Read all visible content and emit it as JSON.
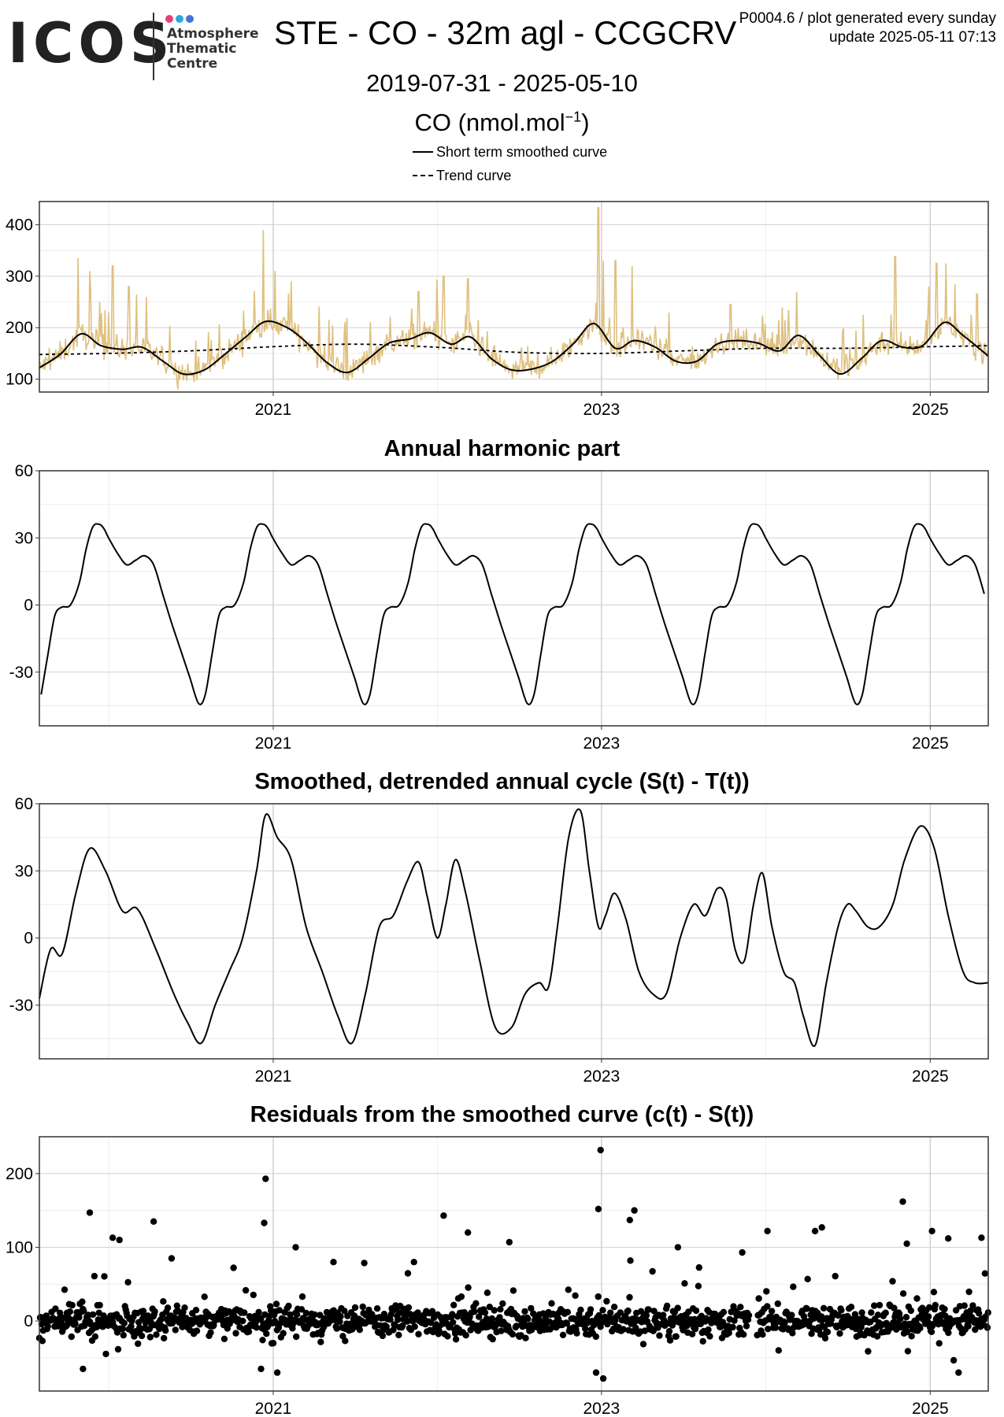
{
  "logo": {
    "word": "ICOS",
    "line1": "Atmosphere",
    "line2": "Thematic",
    "line3": "Centre",
    "dot_colors": [
      "#e8417a",
      "#29a9e0",
      "#4a6fd8"
    ]
  },
  "header": {
    "title": "STE - CO - 32m agl - CCGCRV",
    "meta_line1": "P0004.6 / plot generated every sunday",
    "meta_line2": "update  2025-05-11 07:13",
    "date_range": "2019-07-31 - 2025-05-10",
    "unit_base": "CO (nmol.mol",
    "unit_exp": "−1",
    "unit_close": ")"
  },
  "legend": {
    "solid_label": "Short term smoothed curve",
    "dashed_label": "Trend curve"
  },
  "colors": {
    "raw_series": "#dfc07e",
    "curves": "#000000",
    "grid_major": "#d0d0d0",
    "grid_minor": "#ececec",
    "frame": "#333333"
  },
  "chart_data": [
    {
      "type": "line",
      "title": "",
      "x_tick_labels": [
        "2021",
        "2023",
        "2025"
      ],
      "x_ticks": [
        "2021-01-01",
        "2023-01-01",
        "2025-01-01"
      ],
      "xlim": [
        "2019-07-31",
        "2025-05-10"
      ],
      "ylim": [
        75,
        445
      ],
      "y_ticks": [
        100,
        200,
        300,
        400
      ],
      "grid": true,
      "series": [
        {
          "name": "Short term smoothed curve",
          "style": "solid",
          "x": [
            "2019-07-31",
            "2019-09-15",
            "2019-11-01",
            "2019-12-15",
            "2020-02-01",
            "2020-03-15",
            "2020-05-01",
            "2020-06-15",
            "2020-08-01",
            "2020-09-15",
            "2020-11-01",
            "2020-12-15",
            "2021-02-01",
            "2021-03-15",
            "2021-05-01",
            "2021-06-15",
            "2021-08-01",
            "2021-09-15",
            "2021-11-01",
            "2021-12-15",
            "2022-02-01",
            "2022-03-15",
            "2022-05-01",
            "2022-06-15",
            "2022-08-01",
            "2022-09-15",
            "2022-11-01",
            "2022-12-15",
            "2023-02-01",
            "2023-03-15",
            "2023-05-01",
            "2023-06-15",
            "2023-08-01",
            "2023-09-15",
            "2023-11-01",
            "2023-12-15",
            "2024-02-01",
            "2024-03-15",
            "2024-05-01",
            "2024-06-15",
            "2024-08-01",
            "2024-09-15",
            "2024-11-01",
            "2024-12-15",
            "2025-02-01",
            "2025-03-15",
            "2025-05-10"
          ],
          "values": [
            122,
            148,
            188,
            165,
            158,
            162,
            135,
            110,
            118,
            148,
            182,
            212,
            200,
            172,
            132,
            113,
            140,
            170,
            178,
            190,
            168,
            182,
            140,
            118,
            120,
            135,
            170,
            208,
            160,
            175,
            162,
            135,
            135,
            168,
            175,
            170,
            155,
            185,
            145,
            110,
            140,
            175,
            162,
            165,
            210,
            185,
            145
          ]
        },
        {
          "name": "Trend curve",
          "style": "dashed",
          "x": [
            "2019-07-31",
            "2020-01-01",
            "2020-07-01",
            "2021-01-01",
            "2021-07-01",
            "2022-01-01",
            "2022-07-01",
            "2023-01-01",
            "2023-07-01",
            "2024-01-01",
            "2024-07-01",
            "2025-01-01",
            "2025-05-10"
          ],
          "values": [
            148,
            150,
            155,
            163,
            168,
            162,
            152,
            150,
            155,
            160,
            160,
            163,
            165
          ]
        },
        {
          "name": "Raw observations",
          "style": "noisy",
          "color": "#dfc07e",
          "spikes": [
            {
              "x": "2019-10-25",
              "y": 335
            },
            {
              "x": "2019-11-20",
              "y": 310
            },
            {
              "x": "2020-01-10",
              "y": 320
            },
            {
              "x": "2020-02-15",
              "y": 280
            },
            {
              "x": "2020-03-25",
              "y": 260
            },
            {
              "x": "2020-12-10",
              "y": 390
            },
            {
              "x": "2021-01-05",
              "y": 310
            },
            {
              "x": "2021-02-10",
              "y": 290
            },
            {
              "x": "2021-11-20",
              "y": 270
            },
            {
              "x": "2022-01-15",
              "y": 300
            },
            {
              "x": "2022-03-10",
              "y": 295
            },
            {
              "x": "2022-12-25",
              "y": 433
            },
            {
              "x": "2023-01-05",
              "y": 330
            },
            {
              "x": "2023-02-01",
              "y": 330
            },
            {
              "x": "2023-03-10",
              "y": 320
            },
            {
              "x": "2023-10-15",
              "y": 245
            },
            {
              "x": "2024-03-10",
              "y": 270
            },
            {
              "x": "2024-10-15",
              "y": 338
            },
            {
              "x": "2025-01-15",
              "y": 325
            },
            {
              "x": "2025-02-05",
              "y": 325
            },
            {
              "x": "2025-04-15",
              "y": 265
            }
          ]
        }
      ]
    },
    {
      "type": "line",
      "title": "Annual harmonic part",
      "x_tick_labels": [
        "2021",
        "2023",
        "2025"
      ],
      "x_ticks": [
        "2021-01-01",
        "2023-01-01",
        "2025-01-01"
      ],
      "xlim": [
        "2019-07-31",
        "2025-05-10"
      ],
      "ylim": [
        -54,
        60
      ],
      "y_ticks": [
        60,
        30,
        0,
        -30
      ],
      "y_tick_labels": [
        "60",
        "30",
        "0",
        "-30"
      ],
      "grid": true,
      "annual_cycle": {
        "day_of_year": [
          0,
          20,
          40,
          60,
          80,
          100,
          120,
          140,
          160,
          180,
          200,
          215,
          230,
          245,
          260,
          280,
          300,
          315,
          330,
          345,
          355,
          365
        ],
        "values": [
          30,
          23,
          18,
          20,
          22,
          18,
          5,
          -8,
          -20,
          -32,
          -44,
          -40,
          -22,
          -5,
          -1,
          0,
          10,
          25,
          35,
          36,
          34,
          30
        ]
      }
    },
    {
      "type": "line",
      "title": "Smoothed, detrended annual cycle (S(t) - T(t))",
      "x_tick_labels": [
        "2021",
        "2023",
        "2025"
      ],
      "x_ticks": [
        "2021-01-01",
        "2023-01-01",
        "2025-01-01"
      ],
      "xlim": [
        "2019-07-31",
        "2025-05-10"
      ],
      "ylim": [
        -54,
        60
      ],
      "y_ticks": [
        60,
        30,
        0,
        -30
      ],
      "y_tick_labels": [
        "60",
        "30",
        "0",
        "-30"
      ],
      "grid": true,
      "series": [
        {
          "name": "",
          "x": [
            "2019-07-31",
            "2019-08-25",
            "2019-09-20",
            "2019-10-20",
            "2019-11-20",
            "2019-12-25",
            "2020-02-01",
            "2020-03-05",
            "2020-04-15",
            "2020-05-25",
            "2020-06-25",
            "2020-07-25",
            "2020-08-25",
            "2020-09-25",
            "2020-10-25",
            "2020-11-25",
            "2020-12-15",
            "2021-01-10",
            "2021-02-10",
            "2021-03-15",
            "2021-04-20",
            "2021-05-25",
            "2021-06-25",
            "2021-07-25",
            "2021-08-25",
            "2021-09-25",
            "2021-10-25",
            "2021-11-20",
            "2021-12-10",
            "2022-01-01",
            "2022-01-20",
            "2022-02-10",
            "2022-03-05",
            "2022-04-05",
            "2022-05-10",
            "2022-06-15",
            "2022-07-15",
            "2022-08-15",
            "2022-09-05",
            "2022-09-25",
            "2022-10-20",
            "2022-11-15",
            "2022-12-05",
            "2022-12-25",
            "2023-01-10",
            "2023-01-30",
            "2023-02-25",
            "2023-03-25",
            "2023-04-25",
            "2023-05-25",
            "2023-06-25",
            "2023-07-25",
            "2023-08-20",
            "2023-09-15",
            "2023-10-05",
            "2023-10-25",
            "2023-11-15",
            "2023-12-05",
            "2023-12-25",
            "2024-01-15",
            "2024-02-10",
            "2024-03-05",
            "2024-03-25",
            "2024-04-20",
            "2024-05-15",
            "2024-06-10",
            "2024-07-01",
            "2024-07-20",
            "2024-08-15",
            "2024-09-10",
            "2024-10-10",
            "2024-11-05",
            "2024-12-10",
            "2025-01-10",
            "2025-02-10",
            "2025-03-15",
            "2025-04-10",
            "2025-05-10"
          ],
          "values": [
            -27,
            -5,
            -7,
            20,
            40,
            30,
            12,
            13,
            -5,
            -25,
            -38,
            -47,
            -30,
            -15,
            0,
            30,
            55,
            45,
            35,
            5,
            -15,
            -35,
            -47,
            -25,
            5,
            10,
            25,
            34,
            18,
            0,
            15,
            35,
            20,
            -10,
            -40,
            -40,
            -25,
            -20,
            -22,
            5,
            45,
            57,
            30,
            5,
            10,
            20,
            8,
            -15,
            -25,
            -25,
            0,
            15,
            10,
            22,
            18,
            -5,
            -10,
            15,
            29,
            5,
            -15,
            -20,
            -35,
            -48,
            -20,
            5,
            15,
            12,
            5,
            5,
            15,
            35,
            50,
            40,
            10,
            -15,
            -20,
            -20
          ]
        }
      ]
    },
    {
      "type": "scatter",
      "title": "Residuals from the smoothed curve (c(t) - S(t))",
      "x_tick_labels": [
        "2021",
        "2023",
        "2025"
      ],
      "x_ticks": [
        "2021-01-01",
        "2023-01-01",
        "2025-01-01"
      ],
      "xlim": [
        "2019-07-31",
        "2025-05-10"
      ],
      "ylim": [
        -95,
        250
      ],
      "y_ticks": [
        200,
        100,
        0
      ],
      "grid": true,
      "outliers": [
        {
          "x": "2019-11-20",
          "y": 147
        },
        {
          "x": "2020-01-10",
          "y": 113
        },
        {
          "x": "2020-01-25",
          "y": 110
        },
        {
          "x": "2020-04-10",
          "y": 135
        },
        {
          "x": "2020-05-20",
          "y": 85
        },
        {
          "x": "2020-12-15",
          "y": 193
        },
        {
          "x": "2020-12-12",
          "y": 133
        },
        {
          "x": "2021-02-20",
          "y": 100
        },
        {
          "x": "2021-05-15",
          "y": 80
        },
        {
          "x": "2021-11-10",
          "y": 80
        },
        {
          "x": "2022-01-15",
          "y": 143
        },
        {
          "x": "2022-03-10",
          "y": 120
        },
        {
          "x": "2022-06-10",
          "y": 107
        },
        {
          "x": "2022-12-30",
          "y": 232
        },
        {
          "x": "2022-12-25",
          "y": 152
        },
        {
          "x": "2023-03-15",
          "y": 150
        },
        {
          "x": "2023-03-05",
          "y": 137
        },
        {
          "x": "2023-06-20",
          "y": 100
        },
        {
          "x": "2023-11-10",
          "y": 93
        },
        {
          "x": "2024-01-05",
          "y": 122
        },
        {
          "x": "2024-04-20",
          "y": 122
        },
        {
          "x": "2024-05-05",
          "y": 127
        },
        {
          "x": "2024-11-01",
          "y": 162
        },
        {
          "x": "2024-11-10",
          "y": 105
        },
        {
          "x": "2025-01-05",
          "y": 122
        },
        {
          "x": "2025-02-10",
          "y": 112
        },
        {
          "x": "2025-04-25",
          "y": 113
        },
        {
          "x": "2023-01-05",
          "y": -78
        },
        {
          "x": "2022-12-20",
          "y": -70
        },
        {
          "x": "2025-03-05",
          "y": -70
        },
        {
          "x": "2021-01-10",
          "y": -70
        },
        {
          "x": "2020-12-05",
          "y": -65
        },
        {
          "x": "2019-11-05",
          "y": -65
        }
      ]
    }
  ]
}
